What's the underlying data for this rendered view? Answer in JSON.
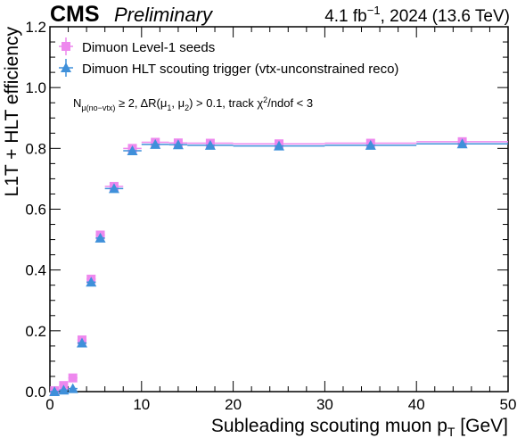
{
  "header": {
    "experiment": "CMS",
    "status": "Preliminary",
    "lumi_text": "4.1 fb",
    "lumi_exp": "−1",
    "lumi_suffix": ", 2024 (13.6 TeV)"
  },
  "chart_data": {
    "type": "scatter",
    "xlabel": "Subleading scouting muon p",
    "xlabel_sub": "T",
    "xlabel_unit": " [GeV]",
    "ylabel": "L1T + HLT efficiency",
    "xlim": [
      0,
      50
    ],
    "ylim": [
      0,
      1.2
    ],
    "x_ticks": [
      0,
      10,
      20,
      30,
      40,
      50
    ],
    "y_ticks": [
      0,
      0.2,
      0.4,
      0.6,
      0.8,
      1.0,
      1.2
    ],
    "x_tick_labels": [
      "0",
      "10",
      "20",
      "30",
      "40",
      "50"
    ],
    "y_tick_labels": [
      "0.0",
      "0.2",
      "0.4",
      "0.6",
      "0.8",
      "1.0",
      "1.2"
    ],
    "grid": false,
    "legend_position": "top-left",
    "annotation": "N_{μ(no−vtx)} ≥ 2, ΔR(μ1, μ2) > 0.1, track χ²/ndof < 3",
    "annotation_parts": {
      "n": "N",
      "n_sub": "μ(no−vtx)",
      "mid": " ≥ 2,  ΔR(μ",
      "mu1": "1",
      "comma": ", μ",
      "mu2": "2",
      "tail": ") > 0.1,  track χ",
      "chi_exp": "2",
      "end": "/ndof < 3"
    },
    "series": [
      {
        "name": "Dimuon Level-1 seeds",
        "marker": "square",
        "color": "#ee88ee",
        "bins": [
          [
            0,
            1
          ],
          [
            1,
            2
          ],
          [
            2,
            3
          ],
          [
            3,
            4
          ],
          [
            4,
            5
          ],
          [
            5,
            6
          ],
          [
            6,
            8
          ],
          [
            8,
            10
          ],
          [
            10,
            13
          ],
          [
            13,
            15
          ],
          [
            15,
            20
          ],
          [
            20,
            30
          ],
          [
            30,
            40
          ],
          [
            40,
            50
          ]
        ],
        "values": [
          0.003,
          0.02,
          0.045,
          0.17,
          0.37,
          0.515,
          0.675,
          0.8,
          0.82,
          0.818,
          0.817,
          0.815,
          0.817,
          0.822
        ]
      },
      {
        "name": "Dimuon HLT scouting trigger (vtx-unconstrained reco)",
        "marker": "triangle",
        "color": "#3f90da",
        "bins": [
          [
            0,
            1
          ],
          [
            1,
            2
          ],
          [
            2,
            3
          ],
          [
            3,
            4
          ],
          [
            4,
            5
          ],
          [
            5,
            6
          ],
          [
            6,
            8
          ],
          [
            8,
            10
          ],
          [
            10,
            13
          ],
          [
            13,
            15
          ],
          [
            15,
            20
          ],
          [
            20,
            30
          ],
          [
            30,
            40
          ],
          [
            40,
            50
          ]
        ],
        "values": [
          0.0,
          0.005,
          0.01,
          0.16,
          0.36,
          0.505,
          0.668,
          0.792,
          0.813,
          0.812,
          0.81,
          0.808,
          0.81,
          0.815
        ]
      }
    ]
  }
}
